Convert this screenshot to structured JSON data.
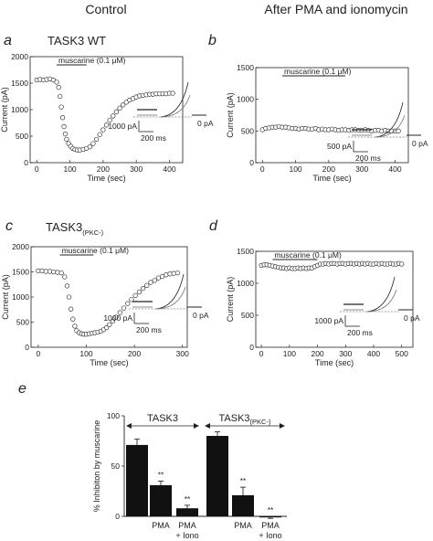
{
  "figure": {
    "col_left": "Control",
    "col_right": "After PMA and ionomycin"
  },
  "chart_data": [
    {
      "type": "scatter",
      "panel": "a",
      "title": "TASK3 WT",
      "xlabel": "Time (sec)",
      "ylabel": "Current (pA)",
      "xlim": [
        -20,
        440
      ],
      "ylim": [
        0,
        2000
      ],
      "xticks": [
        0,
        100,
        200,
        300,
        400
      ],
      "yticks": [
        0,
        500,
        1000,
        1500,
        2000
      ],
      "bar_label": "muscarine (0.1 μM)",
      "bar_x": [
        60,
        150
      ],
      "inset": {
        "scale_current": "1000 pA",
        "scale_time": "200 ms",
        "zero_label": "0 pA"
      },
      "series": [
        {
          "x": [
            0,
            10,
            20,
            30,
            40,
            50,
            60,
            66,
            70,
            74,
            78,
            82,
            86,
            90,
            96,
            102,
            108,
            115,
            122,
            130,
            140,
            150,
            160,
            170,
            180,
            190,
            200,
            210,
            220,
            230,
            240,
            250,
            260,
            270,
            280,
            290,
            300,
            310,
            320,
            330,
            340,
            350,
            360,
            370,
            380,
            390,
            400,
            410
          ],
          "values": [
            1560,
            1570,
            1560,
            1570,
            1580,
            1560,
            1520,
            1420,
            1250,
            1050,
            850,
            680,
            540,
            440,
            360,
            310,
            270,
            250,
            240,
            240,
            250,
            270,
            300,
            360,
            440,
            530,
            620,
            710,
            800,
            880,
            960,
            1030,
            1090,
            1140,
            1180,
            1210,
            1240,
            1260,
            1270,
            1280,
            1290,
            1290,
            1300,
            1300,
            1300,
            1300,
            1310,
            1310
          ]
        }
      ]
    },
    {
      "type": "scatter",
      "panel": "b",
      "xlabel": "Time (sec)",
      "ylabel": "Current (pA)",
      "xlim": [
        -20,
        440
      ],
      "ylim": [
        0,
        1500
      ],
      "xticks": [
        0,
        100,
        200,
        300,
        400
      ],
      "yticks": [
        0,
        500,
        1000,
        1500
      ],
      "bar_label": "muscarine (0.1 μM)",
      "bar_x": [
        60,
        250
      ],
      "inset": {
        "scale_current": "500 pA",
        "scale_time": "200 ms",
        "zero_label": "0 pA"
      },
      "series": [
        {
          "x": [
            0,
            10,
            20,
            30,
            40,
            50,
            60,
            70,
            80,
            90,
            100,
            110,
            120,
            130,
            140,
            150,
            160,
            170,
            180,
            190,
            200,
            210,
            220,
            230,
            240,
            250,
            260,
            270,
            280,
            290,
            300,
            310,
            320,
            330,
            340,
            350,
            360,
            370,
            380,
            390,
            400,
            410
          ],
          "values": [
            520,
            540,
            550,
            560,
            560,
            570,
            560,
            560,
            550,
            540,
            540,
            530,
            540,
            540,
            530,
            530,
            540,
            520,
            530,
            520,
            520,
            530,
            520,
            510,
            520,
            520,
            510,
            520,
            520,
            510,
            510,
            520,
            510,
            500,
            510,
            510,
            500,
            510,
            500,
            500,
            500,
            500
          ]
        }
      ]
    },
    {
      "type": "scatter",
      "panel": "c",
      "title": "TASK3",
      "title_sub": "(PKC-)",
      "xlabel": "Time (sec)",
      "ylabel": "Current (pA)",
      "xlim": [
        -15,
        310
      ],
      "ylim": [
        0,
        2000
      ],
      "xticks": [
        0,
        100,
        200,
        300
      ],
      "yticks": [
        0,
        500,
        1000,
        1500,
        2000
      ],
      "bar_label": "muscarine (0.1 μM)",
      "bar_x": [
        45,
        115
      ],
      "inset": {
        "scale_current": "1000 pA",
        "scale_time": "200 ms",
        "zero_label": "0 pA"
      },
      "series": [
        {
          "x": [
            0,
            8,
            16,
            24,
            32,
            40,
            48,
            55,
            60,
            64,
            68,
            72,
            76,
            80,
            85,
            90,
            95,
            100,
            106,
            112,
            118,
            124,
            130,
            136,
            142,
            148,
            155,
            162,
            170,
            178,
            186,
            194,
            202,
            210,
            218,
            226,
            234,
            242,
            250,
            258,
            266,
            274,
            282,
            290
          ],
          "values": [
            1520,
            1520,
            1510,
            1510,
            1500,
            1490,
            1480,
            1400,
            1220,
            1000,
            760,
            560,
            420,
            330,
            290,
            270,
            260,
            260,
            270,
            280,
            290,
            300,
            320,
            350,
            390,
            450,
            520,
            600,
            690,
            780,
            870,
            950,
            1030,
            1100,
            1170,
            1230,
            1290,
            1330,
            1380,
            1410,
            1440,
            1460,
            1470,
            1480
          ]
        }
      ]
    },
    {
      "type": "scatter",
      "panel": "d",
      "xlabel": "Time (sec)",
      "ylabel": "Current (pA)",
      "xlim": [
        -20,
        540
      ],
      "ylim": [
        0,
        1500
      ],
      "xticks": [
        0,
        100,
        200,
        300,
        400,
        500
      ],
      "yticks": [
        0,
        500,
        1000,
        1500
      ],
      "bar_label": "muscarine (0.1 μM)",
      "bar_x": [
        40,
        200
      ],
      "inset": {
        "scale_current": "1000 pA",
        "scale_time": "200 ms",
        "zero_label": "0 pA"
      },
      "series": [
        {
          "x": [
            0,
            10,
            20,
            30,
            40,
            50,
            60,
            70,
            80,
            90,
            100,
            110,
            120,
            130,
            140,
            150,
            160,
            170,
            180,
            190,
            200,
            210,
            220,
            230,
            240,
            250,
            260,
            270,
            280,
            290,
            300,
            310,
            320,
            330,
            340,
            350,
            360,
            370,
            380,
            390,
            400,
            410,
            420,
            430,
            440,
            450,
            460,
            470,
            480,
            490,
            500
          ],
          "values": [
            1280,
            1290,
            1290,
            1280,
            1270,
            1260,
            1250,
            1240,
            1240,
            1230,
            1240,
            1230,
            1230,
            1240,
            1230,
            1240,
            1230,
            1240,
            1240,
            1260,
            1280,
            1300,
            1300,
            1310,
            1300,
            1310,
            1310,
            1300,
            1310,
            1310,
            1300,
            1310,
            1310,
            1300,
            1310,
            1300,
            1310,
            1300,
            1310,
            1300,
            1300,
            1310,
            1300,
            1310,
            1300,
            1300,
            1310,
            1300,
            1300,
            1310,
            1300
          ]
        }
      ]
    },
    {
      "type": "bar",
      "panel": "e",
      "ylabel": "% Inhibiton by muscarine",
      "ylim": [
        0,
        100
      ],
      "yticks": [
        0,
        50,
        100
      ],
      "group_labels": [
        "TASK3",
        "TASK3"
      ],
      "group_subs": [
        "",
        "(PKC-)"
      ],
      "categories": [
        "",
        "PMA",
        "PMA + Iono",
        "",
        "PMA",
        "PMA + Iono"
      ],
      "cat_lines": [
        [
          "",
          ""
        ],
        [
          "PMA",
          ""
        ],
        [
          "PMA",
          "+ Iono"
        ],
        [
          "",
          ""
        ],
        [
          "PMA",
          ""
        ],
        [
          "PMA",
          "+ Iono"
        ]
      ],
      "values": [
        71,
        31,
        8,
        80,
        21,
        -1
      ],
      "errors": [
        6,
        4,
        3,
        4,
        8,
        1
      ],
      "significance": [
        "",
        "**",
        "**",
        "",
        "**",
        "**"
      ]
    }
  ]
}
